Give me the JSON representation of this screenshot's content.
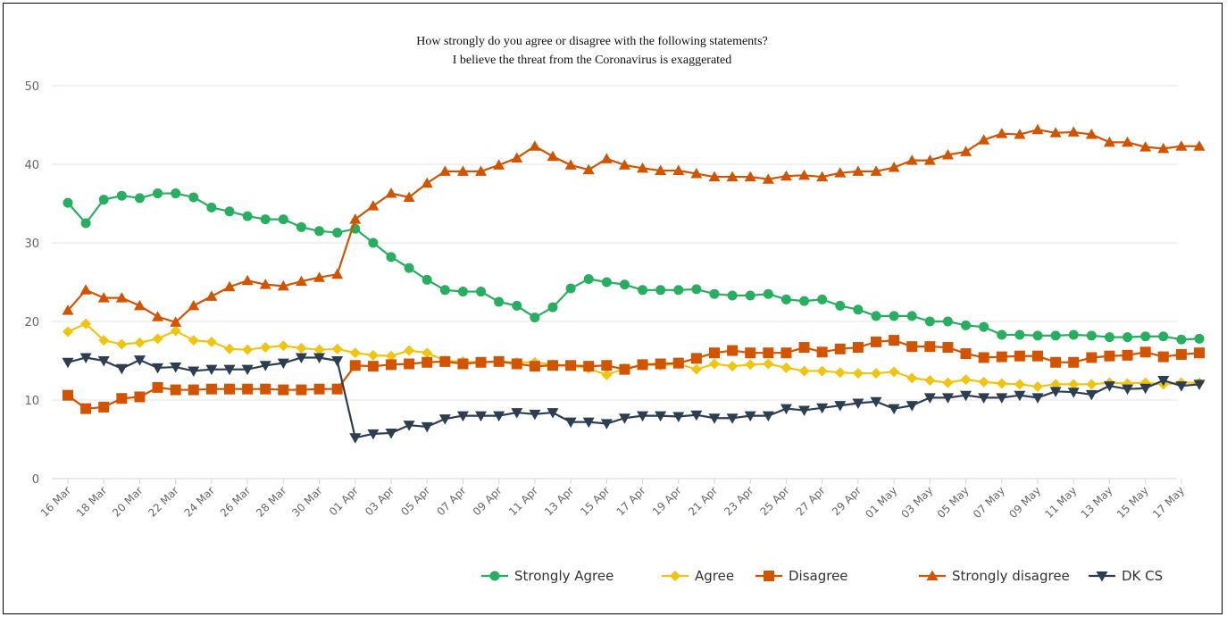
{
  "chart_data": {
    "type": "line",
    "title": "How strongly do you agree or disagree with the following statements?",
    "subtitle": "I believe the threat from the Coronavirus is exaggerated",
    "ylim": [
      0,
      50
    ],
    "yticks": [
      0,
      10,
      20,
      30,
      40,
      50
    ],
    "grid": "horizontal",
    "legend_position": "bottom-right",
    "x_tick_labels": [
      "16 Mar",
      "18 Mar",
      "20 Mar",
      "22 Mar",
      "24 Mar",
      "26 Mar",
      "28 Mar",
      "30 Mar",
      "01 Apr",
      "03 Apr",
      "05 Apr",
      "07 Apr",
      "09 Apr",
      "11 Apr",
      "13 Apr",
      "15 Apr",
      "17 Apr",
      "19 Apr",
      "21 Apr",
      "23 Apr",
      "25 Apr",
      "27 Apr",
      "29 Apr",
      "01 May",
      "03 May",
      "05 May",
      "07 May",
      "09 May",
      "11 May",
      "13 May",
      "15 May",
      "17 May"
    ],
    "series": [
      {
        "name": "Strongly Agree",
        "color": "#27ae60",
        "marker": "circle",
        "values": [
          35.1,
          32.5,
          35.5,
          36.0,
          35.7,
          36.3,
          36.3,
          35.8,
          34.5,
          34.0,
          33.4,
          33.0,
          33.0,
          32.0,
          31.5,
          31.3,
          31.8,
          30.0,
          28.2,
          26.8,
          25.3,
          24.0,
          23.8,
          23.8,
          22.5,
          22.0,
          20.5,
          21.8,
          24.2,
          25.4,
          25.0,
          24.7,
          24.0,
          24.0,
          24.0,
          24.1,
          23.5,
          23.3,
          23.3,
          23.5,
          22.8,
          22.6,
          22.8,
          22.0,
          21.5,
          20.7,
          20.7,
          20.7,
          20.0,
          20.0,
          19.5,
          19.3,
          18.3,
          18.3,
          18.2,
          18.2,
          18.3,
          18.2,
          18.0,
          18.0,
          18.1,
          18.1,
          17.7,
          17.8
        ]
      },
      {
        "name": "Agree",
        "color": "#f1c40f",
        "marker": "diamond",
        "values": [
          18.7,
          19.7,
          17.6,
          17.1,
          17.3,
          17.8,
          18.8,
          17.6,
          17.4,
          16.5,
          16.4,
          16.7,
          16.9,
          16.6,
          16.4,
          16.5,
          16.0,
          15.7,
          15.6,
          16.3,
          16.0,
          15.0,
          14.9,
          14.8,
          14.9,
          14.8,
          14.8,
          14.5,
          14.4,
          14.0,
          13.2,
          14.0,
          14.5,
          14.4,
          14.6,
          13.9,
          14.6,
          14.3,
          14.5,
          14.6,
          14.1,
          13.7,
          13.7,
          13.5,
          13.4,
          13.4,
          13.6,
          12.8,
          12.5,
          12.2,
          12.6,
          12.3,
          12.1,
          12.0,
          11.7,
          12.0,
          12.0,
          12.0,
          12.2,
          12.1,
          12.2,
          12.0,
          12.2,
          12.2
        ]
      },
      {
        "name": "Disagree",
        "color": "#d35400",
        "marker": "square",
        "values": [
          10.6,
          8.9,
          9.1,
          10.2,
          10.4,
          11.6,
          11.3,
          11.3,
          11.4,
          11.4,
          11.4,
          11.4,
          11.3,
          11.3,
          11.4,
          11.4,
          14.4,
          14.3,
          14.5,
          14.6,
          14.8,
          14.9,
          14.6,
          14.8,
          14.9,
          14.6,
          14.3,
          14.4,
          14.4,
          14.3,
          14.4,
          13.9,
          14.5,
          14.6,
          14.7,
          15.3,
          16.0,
          16.3,
          16.0,
          16.0,
          16.0,
          16.7,
          16.1,
          16.5,
          16.7,
          17.4,
          17.6,
          16.8,
          16.8,
          16.7,
          15.9,
          15.4,
          15.5,
          15.6,
          15.6,
          14.8,
          14.8,
          15.4,
          15.6,
          15.7,
          16.1,
          15.5,
          15.8,
          16.0
        ]
      },
      {
        "name": "Strongly disagree",
        "color": "#d35400",
        "marker": "triangle",
        "values": [
          21.4,
          24.0,
          23.0,
          23.0,
          22.0,
          20.6,
          19.9,
          22.0,
          23.2,
          24.4,
          25.2,
          24.7,
          24.5,
          25.1,
          25.6,
          26.0,
          33.0,
          34.7,
          36.3,
          35.8,
          37.6,
          39.1,
          39.1,
          39.1,
          39.9,
          40.8,
          42.3,
          41.0,
          39.9,
          39.3,
          40.7,
          39.9,
          39.5,
          39.2,
          39.2,
          38.8,
          38.4,
          38.4,
          38.4,
          38.1,
          38.5,
          38.6,
          38.4,
          38.9,
          39.1,
          39.1,
          39.6,
          40.5,
          40.5,
          41.2,
          41.6,
          43.1,
          43.9,
          43.8,
          44.4,
          44.0,
          44.1,
          43.8,
          42.8,
          42.8,
          42.2,
          42.0,
          42.3,
          42.3
        ]
      },
      {
        "name": "DK CS",
        "color": "#2c3e50",
        "marker": "triangle-down",
        "values": [
          14.8,
          15.4,
          15.0,
          14.0,
          15.1,
          14.1,
          14.2,
          13.7,
          13.9,
          13.9,
          13.9,
          14.4,
          14.7,
          15.4,
          15.4,
          15.0,
          5.2,
          5.7,
          5.8,
          6.8,
          6.6,
          7.6,
          8.0,
          8.0,
          8.0,
          8.4,
          8.2,
          8.4,
          7.2,
          7.2,
          7.0,
          7.7,
          8.0,
          8.0,
          7.9,
          8.1,
          7.7,
          7.7,
          8.0,
          8.0,
          8.9,
          8.7,
          9.0,
          9.3,
          9.6,
          9.8,
          8.9,
          9.3,
          10.3,
          10.3,
          10.6,
          10.3,
          10.3,
          10.6,
          10.3,
          11.1,
          11.0,
          10.7,
          11.8,
          11.4,
          11.5,
          12.5,
          11.8,
          12.0
        ]
      }
    ]
  }
}
